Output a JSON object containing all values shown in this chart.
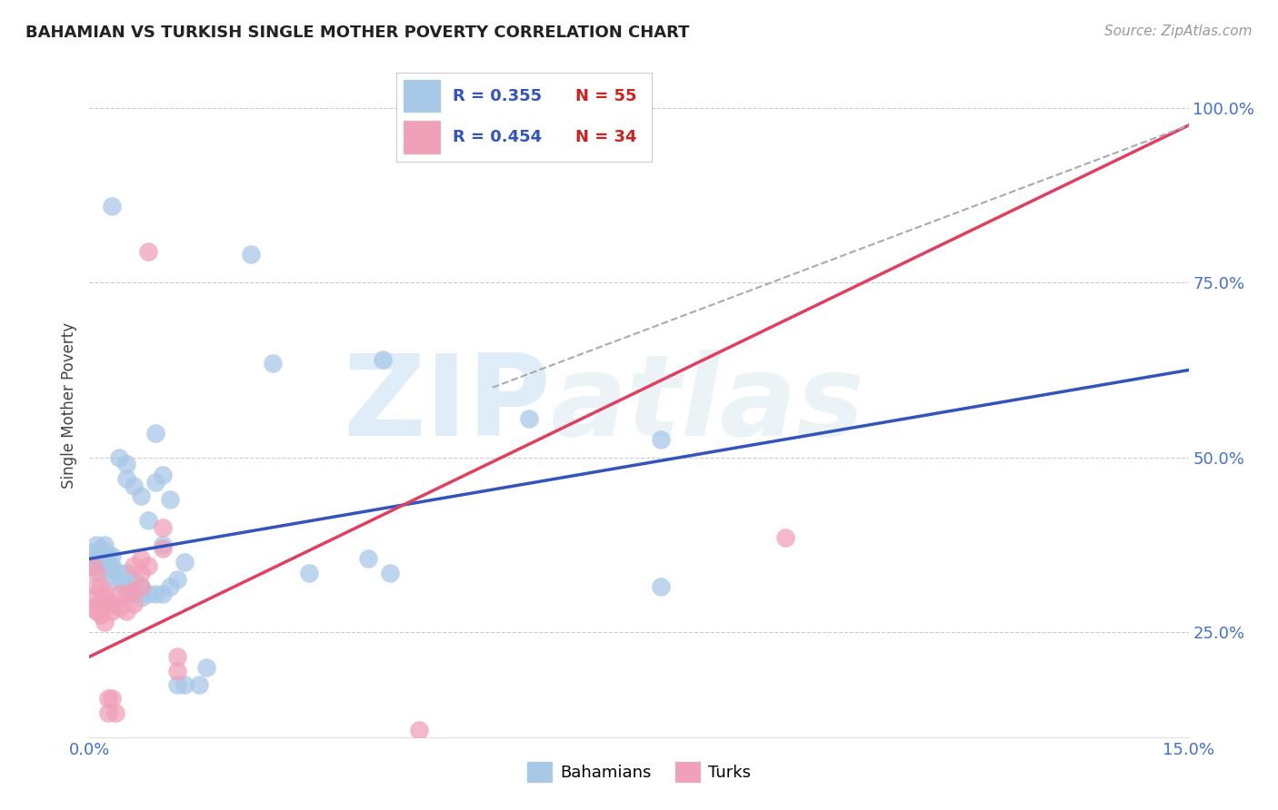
{
  "title": "BAHAMIAN VS TURKISH SINGLE MOTHER POVERTY CORRELATION CHART",
  "source": "Source: ZipAtlas.com",
  "ylabel": "Single Mother Poverty",
  "ylabel_ticks_labels": [
    "25.0%",
    "50.0%",
    "75.0%",
    "100.0%"
  ],
  "ylabel_ticks_vals": [
    0.25,
    0.5,
    0.75,
    1.0
  ],
  "xmin": 0.0,
  "xmax": 0.15,
  "ymin": 0.1,
  "ymax": 1.05,
  "grid_color": "#cccccc",
  "bg_color": "#ffffff",
  "tick_label_color": "#4472c4",
  "blue_color": "#a8c8e8",
  "pink_color": "#f0a0b8",
  "blue_line_color": "#3355bb",
  "pink_line_color": "#e04060",
  "dashed_line_color": "#aaaaaa",
  "legend_R_color": "#3355bb",
  "legend_N_color": "#cc2222",
  "watermark_color": "#cce4f5",
  "blue_data": [
    [
      0.0005,
      0.355
    ],
    [
      0.0005,
      0.365
    ],
    [
      0.001,
      0.36
    ],
    [
      0.001,
      0.375
    ],
    [
      0.001,
      0.34
    ],
    [
      0.0015,
      0.35
    ],
    [
      0.0015,
      0.37
    ],
    [
      0.002,
      0.345
    ],
    [
      0.002,
      0.355
    ],
    [
      0.002,
      0.365
    ],
    [
      0.002,
      0.375
    ],
    [
      0.0025,
      0.34
    ],
    [
      0.0025,
      0.36
    ],
    [
      0.003,
      0.33
    ],
    [
      0.003,
      0.345
    ],
    [
      0.003,
      0.36
    ],
    [
      0.003,
      0.86
    ],
    [
      0.004,
      0.32
    ],
    [
      0.004,
      0.335
    ],
    [
      0.004,
      0.5
    ],
    [
      0.005,
      0.315
    ],
    [
      0.005,
      0.335
    ],
    [
      0.005,
      0.47
    ],
    [
      0.005,
      0.49
    ],
    [
      0.006,
      0.305
    ],
    [
      0.006,
      0.325
    ],
    [
      0.006,
      0.46
    ],
    [
      0.007,
      0.3
    ],
    [
      0.007,
      0.315
    ],
    [
      0.007,
      0.445
    ],
    [
      0.008,
      0.305
    ],
    [
      0.008,
      0.41
    ],
    [
      0.009,
      0.305
    ],
    [
      0.009,
      0.465
    ],
    [
      0.009,
      0.535
    ],
    [
      0.01,
      0.305
    ],
    [
      0.01,
      0.375
    ],
    [
      0.01,
      0.475
    ],
    [
      0.011,
      0.315
    ],
    [
      0.011,
      0.44
    ],
    [
      0.012,
      0.175
    ],
    [
      0.012,
      0.325
    ],
    [
      0.013,
      0.175
    ],
    [
      0.013,
      0.35
    ],
    [
      0.015,
      0.175
    ],
    [
      0.016,
      0.2
    ],
    [
      0.022,
      0.79
    ],
    [
      0.025,
      0.635
    ],
    [
      0.03,
      0.335
    ],
    [
      0.038,
      0.355
    ],
    [
      0.04,
      0.64
    ],
    [
      0.041,
      0.335
    ],
    [
      0.06,
      0.555
    ],
    [
      0.078,
      0.525
    ],
    [
      0.078,
      0.315
    ]
  ],
  "pink_data": [
    [
      0.0005,
      0.345
    ],
    [
      0.0005,
      0.3
    ],
    [
      0.0005,
      0.285
    ],
    [
      0.001,
      0.335
    ],
    [
      0.001,
      0.315
    ],
    [
      0.001,
      0.28
    ],
    [
      0.0015,
      0.315
    ],
    [
      0.0015,
      0.295
    ],
    [
      0.0015,
      0.275
    ],
    [
      0.002,
      0.305
    ],
    [
      0.002,
      0.29
    ],
    [
      0.002,
      0.265
    ],
    [
      0.0025,
      0.295
    ],
    [
      0.0025,
      0.155
    ],
    [
      0.0025,
      0.135
    ],
    [
      0.003,
      0.28
    ],
    [
      0.003,
      0.29
    ],
    [
      0.003,
      0.155
    ],
    [
      0.0035,
      0.135
    ],
    [
      0.004,
      0.285
    ],
    [
      0.004,
      0.305
    ],
    [
      0.005,
      0.28
    ],
    [
      0.005,
      0.305
    ],
    [
      0.006,
      0.29
    ],
    [
      0.006,
      0.345
    ],
    [
      0.006,
      0.31
    ],
    [
      0.007,
      0.315
    ],
    [
      0.007,
      0.355
    ],
    [
      0.007,
      0.335
    ],
    [
      0.008,
      0.345
    ],
    [
      0.008,
      0.795
    ],
    [
      0.01,
      0.4
    ],
    [
      0.01,
      0.37
    ],
    [
      0.012,
      0.215
    ],
    [
      0.012,
      0.195
    ],
    [
      0.095,
      0.385
    ],
    [
      0.045,
      0.11
    ]
  ],
  "blue_line": [
    [
      0.0,
      0.355
    ],
    [
      0.15,
      0.625
    ]
  ],
  "pink_line": [
    [
      0.0,
      0.215
    ],
    [
      0.15,
      0.975
    ]
  ],
  "dashed_line": [
    [
      0.055,
      0.6
    ],
    [
      0.15,
      0.975
    ]
  ]
}
